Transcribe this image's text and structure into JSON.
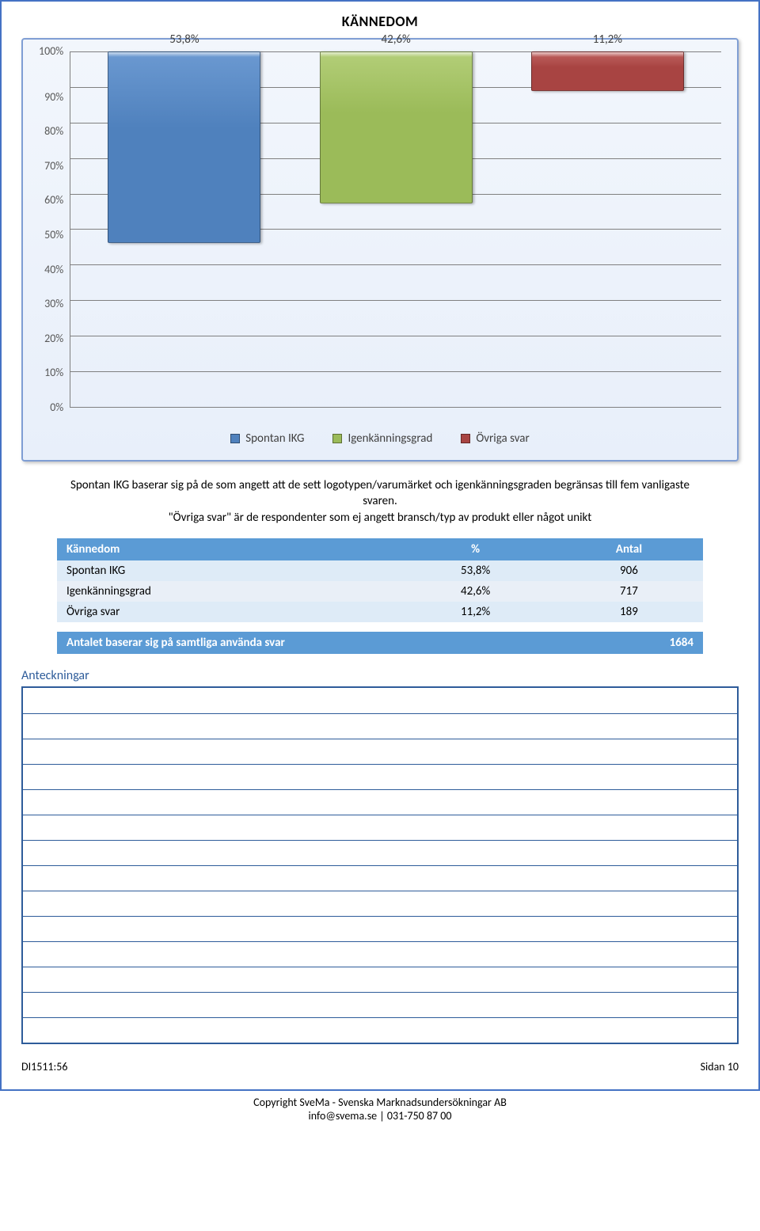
{
  "page_title": "KÄNNEDOM",
  "chart": {
    "type": "bar",
    "ylim": [
      0,
      100
    ],
    "ytick_step": 10,
    "ytick_suffix": "%",
    "grid_color": "#808080",
    "panel_bg_top": "#f2f6fc",
    "panel_bg_bottom": "#e8effa",
    "panel_border": "#7f9ed4",
    "bar_width_pct": 86,
    "label_fontsize": 15,
    "title_fontsize": 18,
    "series": [
      {
        "label": "Spontan IKG",
        "value": 53.8,
        "value_label": "53,8%",
        "color": "#4f81bd",
        "color_top": "#6b99d1"
      },
      {
        "label": "Igenkänningsgrad",
        "value": 42.6,
        "value_label": "42,6%",
        "color": "#9bbb59",
        "color_top": "#b3ce78"
      },
      {
        "label": "Övriga svar",
        "value": 11.2,
        "value_label": "11,2%",
        "color": "#a84442",
        "color_top": "#bf6260"
      }
    ]
  },
  "body_text_1": "Spontan IKG baserar sig på de som angett att de sett logotypen/varumärket och igenkänningsgraden begränsas till fem vanligaste svaren.",
  "body_text_2": "\"Övriga svar\" är de respondenter som ej angett bransch/typ av produkt eller något unikt",
  "table": {
    "columns": [
      "Kännedom",
      "%",
      "Antal"
    ],
    "rows": [
      [
        "Spontan IKG",
        "53,8%",
        "906"
      ],
      [
        "Igenkänningsgrad",
        "42,6%",
        "717"
      ],
      [
        "Övriga svar",
        "11,2%",
        "189"
      ]
    ],
    "header_bg": "#5b9bd5",
    "row_bg_even": "#deebf7",
    "row_bg_odd": "#e9eff7"
  },
  "total_row": {
    "label": "Antalet baserar sig på samtliga använda svar",
    "value": "1684"
  },
  "notes_title": "Anteckningar",
  "notes_line_count": 14,
  "footer_left": "DI1511:56",
  "footer_right": "Sidan 10",
  "copyright_line1": "Copyright SveMa - Svenska Marknadsundersökningar AB",
  "copyright_line2": "info@svema.se | 031-750 87 00"
}
